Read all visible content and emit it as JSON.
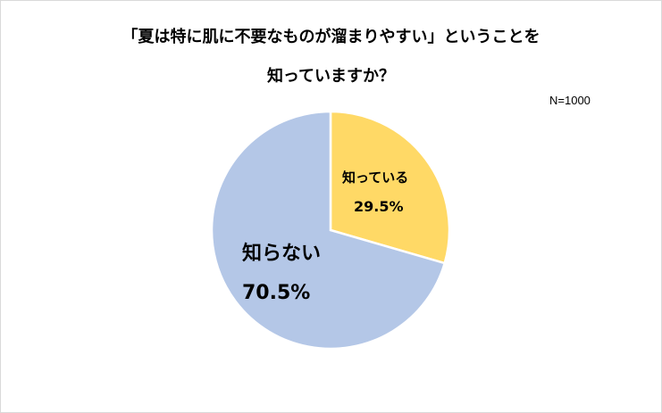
{
  "chart_data": {
    "type": "pie",
    "title_line1": "「夏は特に肌に不要なものが溜まりやすい」ということを",
    "title_line2": "知っていますか？",
    "note": "N=1000",
    "slices": [
      {
        "label": "知っている",
        "value": 29.5,
        "value_label": "29.5%",
        "color": "#FFD966"
      },
      {
        "label": "知らない",
        "value": 70.5,
        "value_label": "70.5%",
        "color": "#B4C7E7"
      }
    ]
  }
}
